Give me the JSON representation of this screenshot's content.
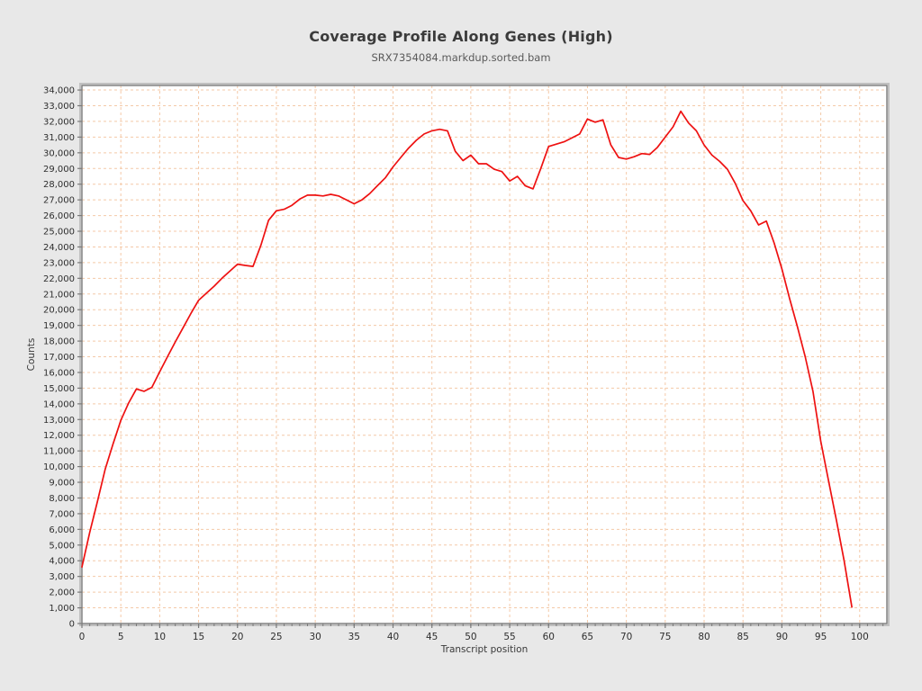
{
  "page": {
    "background": "#e8e8e8"
  },
  "header": {
    "title": "Coverage Profile Along Genes (High)",
    "subtitle": "SRX7354084.markdup.sorted.bam"
  },
  "chart_data": {
    "type": "line",
    "title": "Coverage Profile Along Genes (High)",
    "subtitle": "SRX7354084.markdup.sorted.bam",
    "xlabel": "Transcript position",
    "ylabel": "Counts",
    "xlim": [
      0,
      103.5
    ],
    "ylim": [
      0,
      34290
    ],
    "x_ticks": [
      0,
      5,
      10,
      15,
      20,
      25,
      30,
      35,
      40,
      45,
      50,
      55,
      60,
      65,
      70,
      75,
      80,
      85,
      90,
      95,
      100
    ],
    "x_minor_tick_step": 1,
    "y_tick_step": 1000,
    "y_tick_min": 0,
    "y_tick_max": 34000,
    "grid": true,
    "legend_position": "none",
    "colors": {
      "line": "#ee1111",
      "grid": "#f4c9a8",
      "plot_background": "#ffffff",
      "frame": "#7a7a7a",
      "frame_highlight": "#c0c0c0",
      "tick_text": "#2e2e2e",
      "axis_label": "#3a3a3a"
    },
    "series": [
      {
        "name": "SRX7354084.markdup.sorted.bam",
        "x": [
          0,
          1,
          2,
          3,
          4,
          5,
          6,
          7,
          8,
          9,
          10,
          11,
          12,
          13,
          14,
          15,
          16,
          17,
          18,
          19,
          20,
          21,
          22,
          23,
          24,
          25,
          26,
          27,
          28,
          29,
          30,
          31,
          32,
          33,
          34,
          35,
          36,
          37,
          38,
          39,
          40,
          41,
          42,
          43,
          44,
          45,
          46,
          47,
          48,
          49,
          50,
          51,
          52,
          53,
          54,
          55,
          56,
          57,
          58,
          59,
          60,
          61,
          62,
          63,
          64,
          65,
          66,
          67,
          68,
          69,
          70,
          71,
          72,
          73,
          74,
          75,
          76,
          77,
          78,
          79,
          80,
          81,
          82,
          83,
          84,
          85,
          86,
          87,
          88,
          89,
          90,
          91,
          92,
          93,
          94,
          95,
          96,
          97,
          98,
          99
        ],
        "values": [
          3600,
          5800,
          7800,
          9850,
          11450,
          12950,
          14050,
          14950,
          14800,
          15050,
          16050,
          17000,
          17950,
          18850,
          19750,
          20600,
          21050,
          21500,
          22000,
          22450,
          22900,
          22820,
          22760,
          24100,
          25700,
          26300,
          26400,
          26650,
          27050,
          27300,
          27300,
          27250,
          27350,
          27250,
          27000,
          26750,
          27000,
          27400,
          27900,
          28400,
          29100,
          29700,
          30300,
          30800,
          31200,
          31400,
          31500,
          31400,
          30100,
          29500,
          29850,
          29300,
          29300,
          28950,
          28800,
          28200,
          28500,
          27900,
          27700,
          29000,
          30400,
          30550,
          30700,
          30950,
          31200,
          32150,
          31950,
          32100,
          30500,
          29700,
          29600,
          29750,
          29950,
          29900,
          30350,
          31000,
          31650,
          32650,
          31900,
          31400,
          30500,
          29850,
          29450,
          28950,
          28050,
          26950,
          26300,
          25400,
          25650,
          24250,
          22600,
          20700,
          18900,
          17000,
          14800,
          11600,
          9100,
          6600,
          4000,
          1050
        ]
      }
    ]
  }
}
